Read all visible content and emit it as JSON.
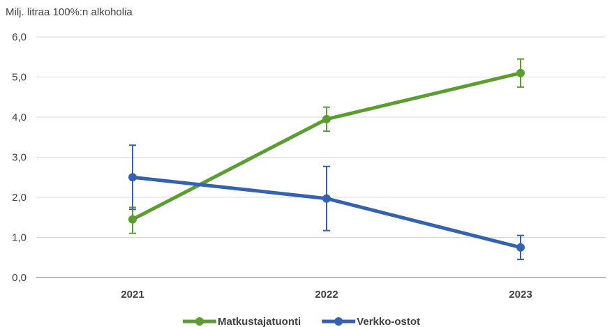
{
  "chart_data": {
    "type": "line",
    "ylabel": "Milj. litraa 100%:n alkoholia",
    "categories": [
      "2021",
      "2022",
      "2023"
    ],
    "ylim": [
      0,
      6
    ],
    "yticks": [
      "0,0",
      "1,0",
      "2,0",
      "3,0",
      "4,0",
      "5,0",
      "6,0"
    ],
    "grid": true,
    "legend_position": "bottom",
    "series": [
      {
        "name": "Matkustajatuonti",
        "color": "#5a9e32",
        "values": [
          1.45,
          3.95,
          5.1
        ],
        "error_low": [
          1.1,
          3.65,
          4.75
        ],
        "error_high": [
          1.75,
          4.25,
          5.45
        ]
      },
      {
        "name": "Verkko-ostot",
        "color": "#3562b0",
        "values": [
          2.5,
          1.97,
          0.75
        ],
        "error_low": [
          1.7,
          1.17,
          0.45
        ],
        "error_high": [
          3.3,
          2.77,
          1.05
        ]
      }
    ]
  }
}
